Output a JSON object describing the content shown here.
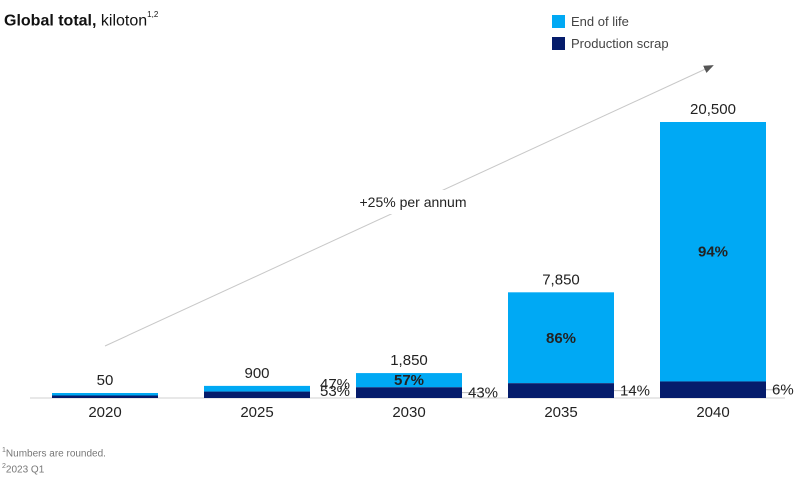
{
  "chart_data": {
    "type": "bar",
    "stacked": true,
    "title_bold": "Global total,",
    "title_unit": "kiloton",
    "title_sup": "1,2",
    "categories": [
      "2020",
      "2025",
      "2030",
      "2035",
      "2040"
    ],
    "totals": [
      50,
      900,
      1850,
      7850,
      20500
    ],
    "total_labels": [
      "50",
      "900",
      "1,850",
      "7,850",
      "20,500"
    ],
    "series": [
      {
        "name": "Production scrap",
        "color": "#051c6b",
        "values": [
          25,
          477,
          796,
          1099,
          1230
        ],
        "share_labels": [
          "",
          "53%",
          "43%",
          "14%",
          "6%"
        ]
      },
      {
        "name": "End of life",
        "color": "#00a9f4",
        "values": [
          25,
          423,
          1054,
          6751,
          19270
        ],
        "share_labels": [
          "",
          "47%",
          "57%",
          "86%",
          "94%"
        ]
      }
    ],
    "annotation": "+25% per annum",
    "ylim": [
      0,
      20500
    ],
    "grid": false,
    "legend_position": "top-right"
  },
  "footnotes": [
    {
      "sup": "1",
      "text": "Numbers are rounded."
    },
    {
      "sup": "2",
      "text": "2023 Q1"
    }
  ]
}
